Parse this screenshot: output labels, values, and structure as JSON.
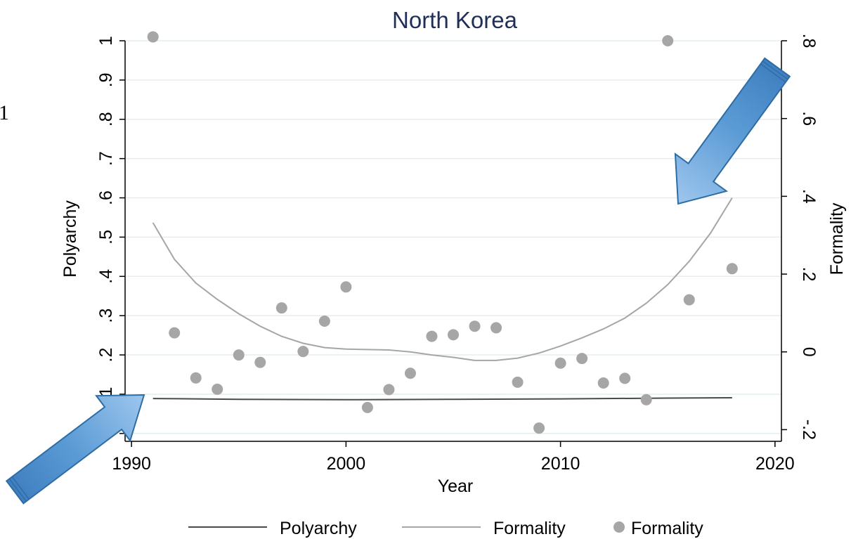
{
  "chart_data": {
    "type": "scatter",
    "title": "North Korea",
    "xlabel": "Year",
    "ylabel_left": "Polyarchy",
    "ylabel_right": "Formality",
    "xlim": [
      1989.7,
      2020.3
    ],
    "ylim_left": [
      -0.02,
      1.0
    ],
    "ylim_right": [
      -0.23,
      0.8
    ],
    "x_ticks": [
      1990,
      2000,
      2010,
      2020
    ],
    "y_left_ticks": [
      {
        "value": 0,
        "label": "0"
      },
      {
        "value": 0.1,
        "label": ".1"
      },
      {
        "value": 0.2,
        "label": ".2"
      },
      {
        "value": 0.3,
        "label": ".3"
      },
      {
        "value": 0.4,
        "label": ".4"
      },
      {
        "value": 0.5,
        "label": ".5"
      },
      {
        "value": 0.6,
        "label": ".6"
      },
      {
        "value": 0.7,
        "label": ".7"
      },
      {
        "value": 0.8,
        "label": ".8"
      },
      {
        "value": 0.9,
        "label": ".9"
      },
      {
        "value": 1,
        "label": "1"
      }
    ],
    "y_right_ticks": [
      {
        "value": -0.2,
        "label": "-.2"
      },
      {
        "value": 0,
        "label": "0"
      },
      {
        "value": 0.2,
        "label": ".2"
      },
      {
        "value": 0.4,
        "label": ".4"
      },
      {
        "value": 0.6,
        "label": ".6"
      },
      {
        "value": 0.8,
        "label": ".8"
      }
    ],
    "grid": true,
    "legend_position": "bottom",
    "series": [
      {
        "name": "Polyarchy",
        "kind": "line",
        "axis": "left",
        "color": "#4a4a4a",
        "x": [
          1991,
          1995,
          2000,
          2005,
          2010,
          2015,
          2018
        ],
        "y": [
          0.089,
          0.087,
          0.086,
          0.087,
          0.088,
          0.09,
          0.091
        ]
      },
      {
        "name": "Formality",
        "kind": "line",
        "axis": "right",
        "color": "#a6a6a6",
        "x": [
          1991,
          1992,
          1993,
          1994,
          1995,
          1996,
          1997,
          1998,
          1999,
          2000,
          2001,
          2002,
          2003,
          2004,
          2005,
          2006,
          2007,
          2008,
          2009,
          2010,
          2011,
          2012,
          2013,
          2014,
          2015,
          2016,
          2017,
          2018
        ],
        "y": [
          0.332,
          0.238,
          0.177,
          0.135,
          0.098,
          0.066,
          0.04,
          0.022,
          0.011,
          0.007,
          0.006,
          0.005,
          0.0,
          -0.008,
          -0.014,
          -0.022,
          -0.022,
          -0.016,
          -0.003,
          0.015,
          0.036,
          0.059,
          0.087,
          0.125,
          0.173,
          0.233,
          0.306,
          0.396
        ]
      },
      {
        "name": "Formality",
        "kind": "scatter",
        "axis": "right",
        "color": "#a6a6a6",
        "x": [
          1991,
          1992,
          1993,
          1994,
          1995,
          1996,
          1997,
          1998,
          1999,
          2000,
          2001,
          2002,
          2003,
          2004,
          2005,
          2006,
          2007,
          2008,
          2009,
          2010,
          2011,
          2012,
          2013,
          2014,
          2015,
          2016,
          2017,
          2018
        ],
        "y": [
          0.81,
          0.049,
          -0.067,
          -0.096,
          -0.008,
          -0.027,
          0.113,
          0.001,
          0.079,
          0.167,
          -0.143,
          -0.097,
          -0.055,
          0.04,
          0.044,
          0.066,
          0.062,
          -0.078,
          -0.196,
          -0.029,
          -0.017,
          -0.08,
          -0.068,
          -0.123,
          0.8,
          0.134,
          0.448,
          0.214
        ]
      }
    ]
  },
  "legend": {
    "items": [
      {
        "label": "Polyarchy",
        "kind": "line",
        "color": "#4a4a4a"
      },
      {
        "label": "Formality",
        "kind": "line",
        "color": "#a6a6a6"
      },
      {
        "label": "Formality",
        "kind": "dot",
        "color": "#a6a6a6"
      }
    ]
  },
  "annotations": {
    "stray_text": "1",
    "arrows": [
      {
        "name": "arrow-upper-right",
        "color": "#5b9bd5"
      },
      {
        "name": "arrow-lower-left",
        "color": "#5b9bd5"
      }
    ]
  }
}
